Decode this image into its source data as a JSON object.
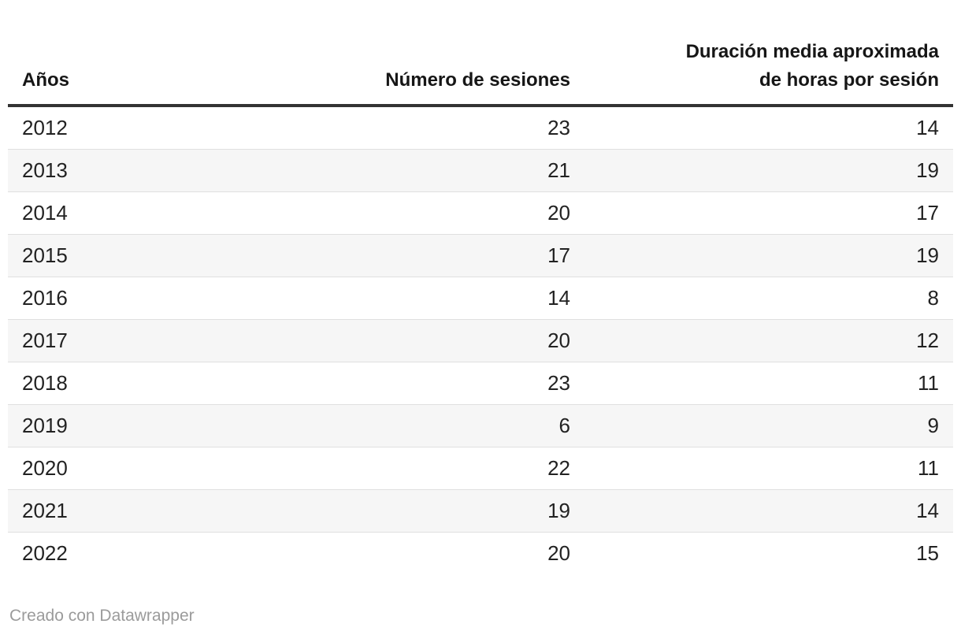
{
  "table": {
    "columns": [
      {
        "id": "anos",
        "label": "Años",
        "align": "left"
      },
      {
        "id": "sesiones",
        "label": "Número de sesiones",
        "align": "right"
      },
      {
        "id": "duracion",
        "label": "Duración media aproximada\nde horas por sesión",
        "align": "right"
      }
    ],
    "rows": [
      {
        "year": "2012",
        "sessions": "23",
        "duration": "14"
      },
      {
        "year": "2013",
        "sessions": "21",
        "duration": "19"
      },
      {
        "year": "2014",
        "sessions": "20",
        "duration": "17"
      },
      {
        "year": "2015",
        "sessions": "17",
        "duration": "19"
      },
      {
        "year": "2016",
        "sessions": "14",
        "duration": "8"
      },
      {
        "year": "2017",
        "sessions": "20",
        "duration": "12"
      },
      {
        "year": "2018",
        "sessions": "23",
        "duration": "11"
      },
      {
        "year": "2019",
        "sessions": "6",
        "duration": "9"
      },
      {
        "year": "2020",
        "sessions": "22",
        "duration": "11"
      },
      {
        "year": "2021",
        "sessions": "19",
        "duration": "14"
      },
      {
        "year": "2022",
        "sessions": "20",
        "duration": "15"
      }
    ]
  },
  "footer": {
    "attribution": "Creado con Datawrapper"
  },
  "colors": {
    "header_rule": "#333333",
    "row_divider": "#e0e0e0",
    "zebra_stripe": "#f6f6f6",
    "body_text": "#222222",
    "footer_text": "#9b9b9b"
  },
  "chart_data": {
    "type": "table",
    "columns": [
      "Años",
      "Número de sesiones",
      "Duración media aproximada de horas por sesión"
    ],
    "rows": [
      [
        2012,
        23,
        14
      ],
      [
        2013,
        21,
        19
      ],
      [
        2014,
        20,
        17
      ],
      [
        2015,
        17,
        19
      ],
      [
        2016,
        14,
        8
      ],
      [
        2017,
        20,
        12
      ],
      [
        2018,
        23,
        11
      ],
      [
        2019,
        6,
        9
      ],
      [
        2020,
        22,
        11
      ],
      [
        2021,
        19,
        14
      ],
      [
        2022,
        20,
        15
      ]
    ]
  }
}
